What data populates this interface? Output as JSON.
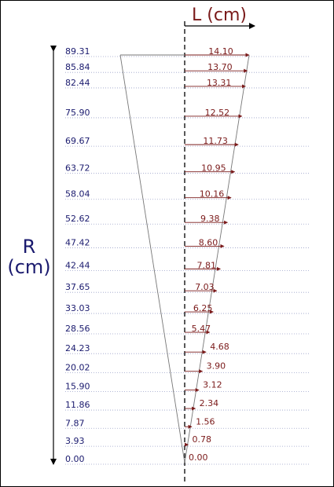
{
  "axis_r": {
    "title_line1": "R",
    "title_line2": "(cm)"
  },
  "axis_l": {
    "title": "L (cm)"
  },
  "colors": {
    "r_text": "#1a1a6e",
    "l_text": "#7a1a1a",
    "line": "#777777",
    "guide": "#9aa0c8",
    "axis": "#000000"
  },
  "chart_data": {
    "type": "diagram",
    "rows": [
      {
        "r": 89.31,
        "l": 14.1
      },
      {
        "r": 85.84,
        "l": 13.7
      },
      {
        "r": 82.44,
        "l": 13.31
      },
      {
        "r": 75.9,
        "l": 12.52
      },
      {
        "r": 69.67,
        "l": 11.73
      },
      {
        "r": 63.72,
        "l": 10.95
      },
      {
        "r": 58.04,
        "l": 10.16
      },
      {
        "r": 52.62,
        "l": 9.38
      },
      {
        "r": 47.42,
        "l": 8.6
      },
      {
        "r": 42.44,
        "l": 7.81
      },
      {
        "r": 37.65,
        "l": 7.03
      },
      {
        "r": 33.03,
        "l": 6.25
      },
      {
        "r": 28.56,
        "l": 5.47
      },
      {
        "r": 24.23,
        "l": 4.68
      },
      {
        "r": 20.02,
        "l": 3.9
      },
      {
        "r": 15.9,
        "l": 3.12
      },
      {
        "r": 11.86,
        "l": 2.34
      },
      {
        "r": 7.87,
        "l": 1.56
      },
      {
        "r": 3.93,
        "l": 0.78
      },
      {
        "r": 0.0,
        "l": 0.0
      }
    ]
  }
}
